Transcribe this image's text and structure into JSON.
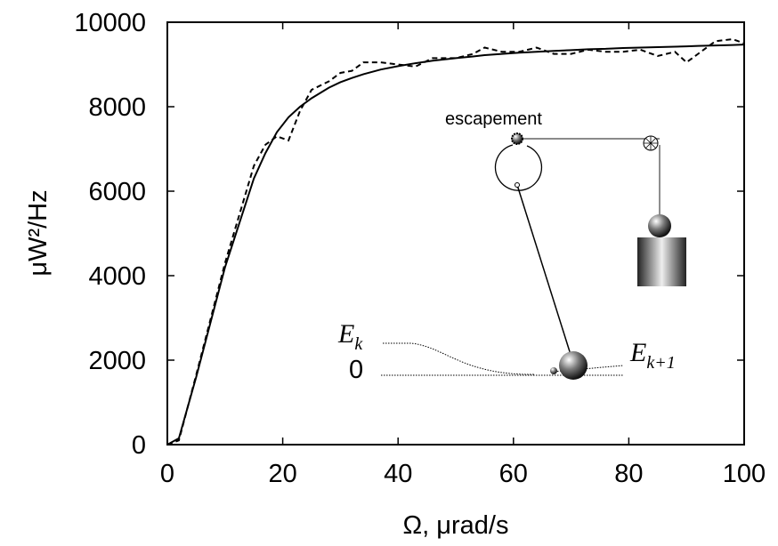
{
  "chart_data": {
    "type": "line",
    "x_label": "Ω, μrad/s",
    "y_label": "μW²/Hz",
    "x": [
      0,
      2,
      5,
      10,
      15,
      17,
      19,
      21,
      23,
      25,
      28,
      30,
      32,
      34,
      37,
      40,
      43,
      46,
      50,
      53,
      55,
      58,
      61,
      64,
      67,
      70,
      73,
      76,
      79,
      82,
      85,
      88,
      90,
      92,
      95,
      98,
      100
    ],
    "series": [
      {
        "color": "#000000",
        "dash": "solid",
        "values": [
          0,
          150,
          1600,
          4200,
          6300,
          6900,
          7400,
          7750,
          8000,
          8200,
          8450,
          8580,
          8680,
          8770,
          8880,
          8960,
          9030,
          9090,
          9150,
          9190,
          9220,
          9250,
          9280,
          9300,
          9320,
          9340,
          9360,
          9370,
          9390,
          9400,
          9410,
          9420,
          9430,
          9440,
          9450,
          9460,
          9470
        ]
      },
      {
        "color": "#000000",
        "dash": "dashed",
        "values": [
          0,
          100,
          1650,
          4300,
          6600,
          7100,
          7300,
          7200,
          7900,
          8400,
          8600,
          8800,
          8850,
          9050,
          9050,
          9000,
          8950,
          9150,
          9150,
          9250,
          9400,
          9300,
          9300,
          9400,
          9250,
          9250,
          9350,
          9300,
          9300,
          9350,
          9200,
          9300,
          9050,
          9250,
          9550,
          9600,
          9500
        ]
      }
    ],
    "xlim": [
      0,
      100
    ],
    "xticks": [
      0,
      20,
      40,
      60,
      80,
      100
    ],
    "ylim": [
      0,
      10000
    ],
    "yticks": [
      0,
      2000,
      4000,
      6000,
      8000,
      10000
    ],
    "annotations": {
      "escapement": "escapement",
      "zero": "0",
      "ek": {
        "base": "E",
        "sub": "k"
      },
      "ek1": {
        "base": "E",
        "sub": "k+1"
      }
    }
  }
}
